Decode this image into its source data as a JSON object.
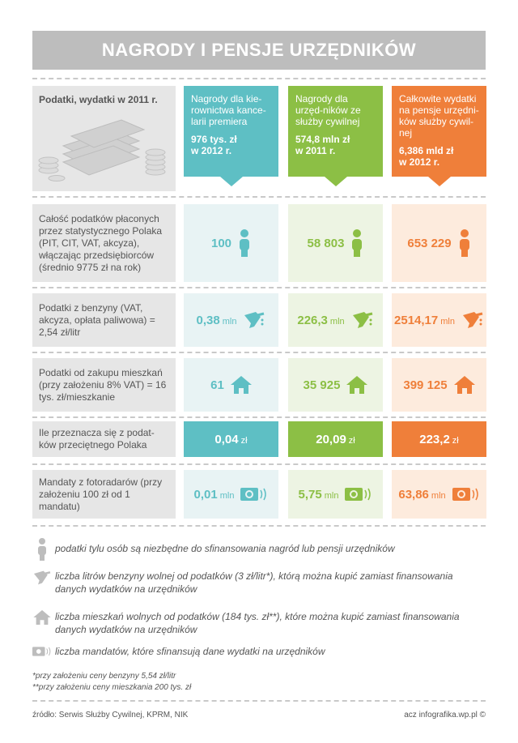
{
  "title": "NAGRODY I PENSJE URZĘDNIKÓW",
  "header_label": "Podatki, wydatki w 2011 r.",
  "columns": [
    {
      "text": "Nagrody dla kie-rownictwa kance-larii premiera",
      "amount": "976 tys. zł",
      "year": "w 2012 r.",
      "color": "#5ebfc4"
    },
    {
      "text": "Nagrody dla urzęd-ników ze służby cywilnej",
      "amount": "574,8 mln zł",
      "year": "w 2011 r.",
      "color": "#8cbf45"
    },
    {
      "text": "Całkowite wydatki na pensje urzędni-ków służby cywil-nej",
      "amount": "6,386 mld zł",
      "year": "w 2012 r.",
      "color": "#ef7f3a"
    }
  ],
  "rows": [
    {
      "label": "Całość podatków płaconych przez statystycznego Polaka (PIT, CIT, VAT, akcyza), włączając przedsiębiorców (średnio 9775 zł na rok)",
      "icon": "person-icon",
      "values": [
        "100",
        "58 803",
        "653 229"
      ],
      "unit": ""
    },
    {
      "label": "Podatki z benzyny (VAT, akcyza, opłata paliwowa) = 2,54 zł/litr",
      "icon": "fuel-nozzle-icon",
      "values": [
        "0,38",
        "226,3",
        "2514,17"
      ],
      "unit": "mln"
    },
    {
      "label": "Podatki od zakupu mieszkań (przy założeniu 8% VAT) = 16 tys. zł/mieszkanie",
      "icon": "house-icon",
      "values": [
        "61",
        "35 925",
        "399 125"
      ],
      "unit": ""
    },
    {
      "label": "Ile przeznacza się z podat-ków przeciętnego Polaka",
      "icon": "",
      "values": [
        "0,04",
        "20,09",
        "223,2"
      ],
      "unit": "zł"
    },
    {
      "label": "Mandaty z fotoradarów (przy założeniu 100 zł od 1 mandatu)",
      "icon": "speed-camera-icon",
      "values": [
        "0,01",
        "5,75",
        "63,86"
      ],
      "unit": "mln"
    }
  ],
  "legend": [
    {
      "icon": "person-icon",
      "text": "podatki tylu osób są niezbędne do sfinansowania nagród lub pensji urzędników"
    },
    {
      "icon": "fuel-nozzle-icon",
      "text": "liczba litrów benzyny wolnej od podatków (3 zł/litr*), którą można kupić zamiast finansowania danych wydatków na urzędników"
    },
    {
      "icon": "house-icon",
      "text": "liczba mieszkań wolnych od podatków (184 tys. zł**), które można kupić zamiast finansowania danych wydatków na urzędników"
    },
    {
      "icon": "speed-camera-icon",
      "text": "liczba mandatów, które sfinansują dane wydatki na urzędników"
    }
  ],
  "footnotes": [
    "*przy założeniu ceny benzyny 5,54 zł/litr",
    "**przy założeniu ceny mieszkania 200 tys. zł"
  ],
  "source": "źródło: Serwis Służby Cywilnej, KPRM, NIK",
  "credit": "acz infografika.wp.pl ©"
}
